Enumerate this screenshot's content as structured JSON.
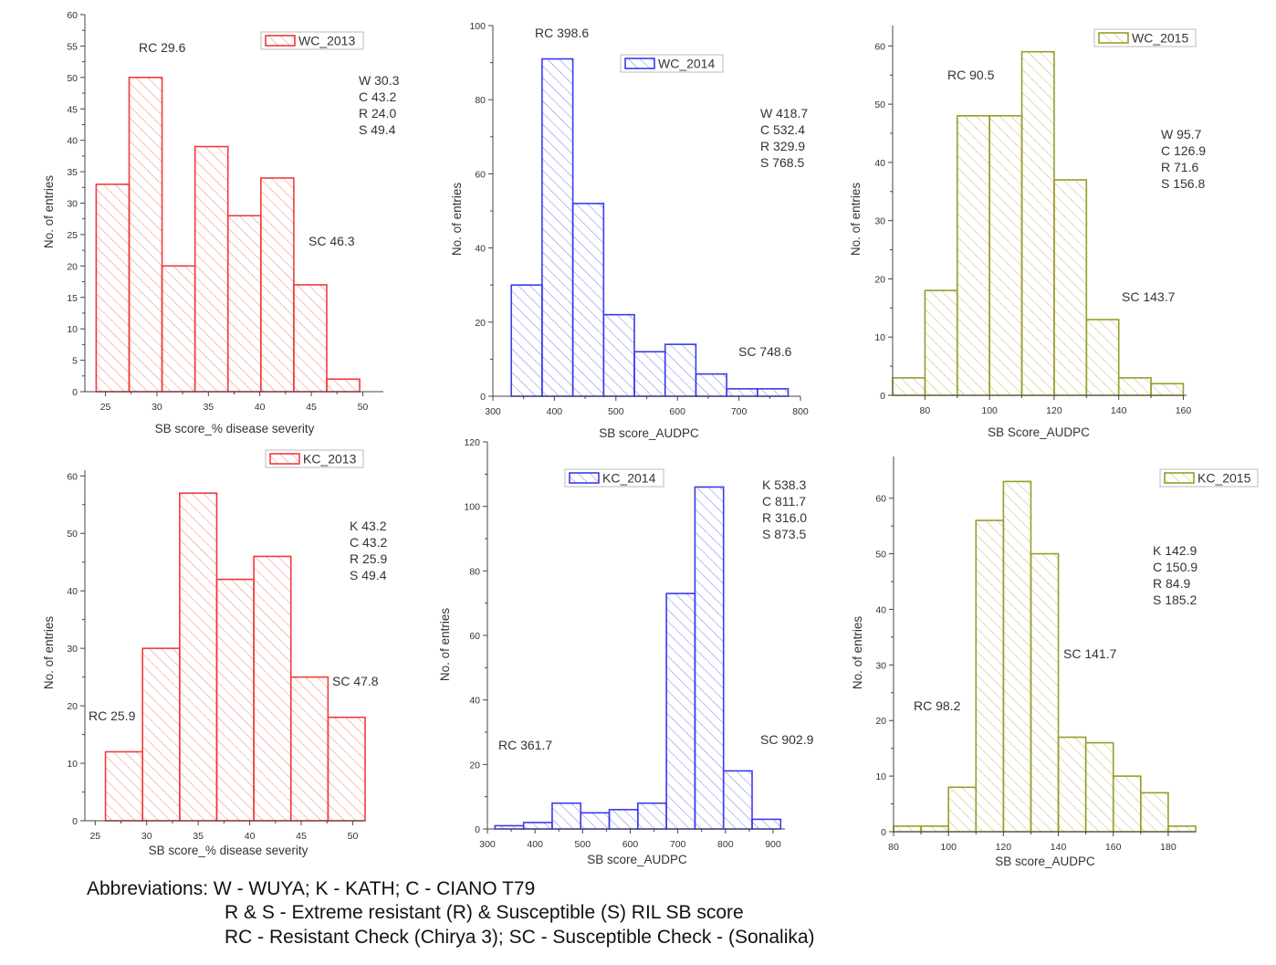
{
  "colors": {
    "red": "#f23b3b",
    "blue": "#3b3bee",
    "olive": "#9b9b2b"
  },
  "chart_data": [
    {
      "type": "bar",
      "legend": "WC_2013",
      "color": "red",
      "xlabel": "SB score_% disease severity",
      "ylabel": "No. of entries",
      "xlim": [
        23,
        52
      ],
      "ylim": [
        0,
        60
      ],
      "xticks": [
        25,
        30,
        35,
        40,
        45,
        50
      ],
      "yticks": [
        0,
        5,
        10,
        15,
        20,
        25,
        30,
        35,
        40,
        45,
        50,
        55,
        60
      ],
      "bin_start": 24.1,
      "bin_width": 3.2,
      "values": [
        33,
        50,
        20,
        39,
        28,
        34,
        17,
        2
      ],
      "rc": "RC 29.6",
      "sc": "SC 46.3",
      "stats": [
        "W 30.3",
        "C 43.2",
        "R 24.0",
        "S 49.4"
      ]
    },
    {
      "type": "bar",
      "legend": "WC_2014",
      "color": "blue",
      "xlabel": "SB score_AUDPC",
      "ylabel": "No. of entries",
      "xlim": [
        300,
        800
      ],
      "ylim": [
        0,
        100
      ],
      "xticks": [
        300,
        400,
        500,
        600,
        700,
        800
      ],
      "yticks": [
        0,
        20,
        40,
        60,
        80,
        100
      ],
      "bin_start": 330,
      "bin_width": 50,
      "values": [
        30,
        91,
        52,
        22,
        12,
        14,
        6,
        2,
        2
      ],
      "rc": "RC 398.6",
      "sc": "SC 748.6",
      "stats": [
        "W 418.7",
        "C 532.4",
        "R 329.9",
        "S 768.5"
      ]
    },
    {
      "type": "bar",
      "legend": "WC_2015",
      "color": "olive",
      "xlabel": "SB Score_AUDPC",
      "ylabel": "No. of entries",
      "xlim": [
        70,
        161
      ],
      "ylim": [
        0,
        63.5
      ],
      "xticks": [
        80,
        100,
        120,
        140,
        160
      ],
      "yticks": [
        0,
        10,
        20,
        30,
        40,
        50,
        60
      ],
      "bin_start": 70,
      "bin_width": 10,
      "values": [
        3,
        18,
        48,
        48,
        59,
        37,
        13,
        3,
        2
      ],
      "rc": "RC 90.5",
      "sc": "SC 143.7",
      "stats": [
        "W 95.7",
        "C 126.9",
        "R 71.6",
        "S 156.8"
      ]
    },
    {
      "type": "bar",
      "legend": "KC_2013",
      "color": "red",
      "xlabel": "SB score_% disease severity",
      "ylabel": "No. of entries",
      "xlim": [
        24,
        51.2
      ],
      "ylim": [
        0,
        61
      ],
      "xticks": [
        25,
        30,
        35,
        40,
        45,
        50
      ],
      "yticks": [
        0,
        10,
        20,
        30,
        40,
        50,
        60
      ],
      "bin_start": 26,
      "bin_width": 3.6,
      "values": [
        12,
        30,
        57,
        42,
        46,
        25,
        18
      ],
      "rc": "RC 25.9",
      "sc": "SC 47.8",
      "stats": [
        "K 43.2",
        "C 43.2",
        "R 25.9",
        "S 49.4"
      ]
    },
    {
      "type": "bar",
      "legend": "KC_2014",
      "color": "blue",
      "xlabel": "SB score_AUDPC",
      "ylabel": "No. of entries",
      "xlim": [
        300,
        925
      ],
      "ylim": [
        0,
        120
      ],
      "xticks": [
        300,
        400,
        500,
        600,
        700,
        800,
        900
      ],
      "yticks": [
        0,
        20,
        40,
        60,
        80,
        100,
        120
      ],
      "bin_start": 316,
      "bin_width": 60,
      "values": [
        1,
        2,
        8,
        5,
        6,
        8,
        73,
        106,
        18,
        3
      ],
      "rc": "RC 361.7",
      "sc": "SC 902.9",
      "stats": [
        "K 538.3",
        "C 811.7",
        "R 316.0",
        "S 873.5"
      ]
    },
    {
      "type": "bar",
      "legend": "KC_2015",
      "color": "olive",
      "xlabel": "SB score_AUDPC",
      "ylabel": "No. of entries",
      "xlim": [
        80,
        190
      ],
      "ylim": [
        0,
        67.5
      ],
      "xticks": [
        80,
        100,
        120,
        140,
        160,
        180
      ],
      "yticks": [
        0,
        10,
        20,
        30,
        40,
        50,
        60
      ],
      "bin_start": 80,
      "bin_width": 10,
      "values": [
        1,
        1,
        8,
        56,
        63,
        50,
        17,
        16,
        10,
        7,
        1
      ],
      "rc": "RC 98.2",
      "sc": "SC 141.7",
      "stats": [
        "K 142.9",
        "C 150.9",
        "R 84.9",
        "S 185.2"
      ]
    }
  ],
  "footer": {
    "line1": "Abbreviations: W - WUYA; K - KATH; C - CIANO T79",
    "line2": "R & S - Extreme resistant (R) & Susceptible (S) RIL SB score",
    "line3": "RC - Resistant Check (Chirya 3); SC - Susceptible Check - (Sonalika)"
  }
}
